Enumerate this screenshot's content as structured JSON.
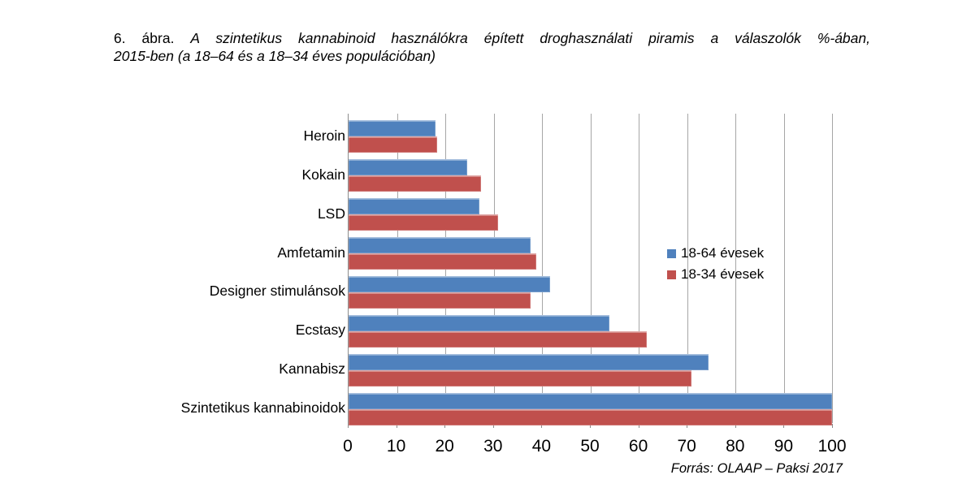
{
  "figure": {
    "title_prefix": "6. ábra.",
    "title_line1": "A szintetikus kannabinoid használókra épített droghasználati piramis a válaszolók %-ában,",
    "title_line2": "2015-ben (a 18–64 és a 18–34 éves populációban)",
    "source": "Forrás: OLAAP – Paksi 2017"
  },
  "chart_data": {
    "type": "bar",
    "orientation": "horizontal",
    "categories": [
      "Heroin",
      "Kokain",
      "LSD",
      "Amfetamin",
      "Designer stimulánsok",
      "Ecstasy",
      "Kannabisz",
      "Szintetikus kannabinoidok"
    ],
    "series": [
      {
        "name": "18-64 évesek",
        "color": "#4F81BD",
        "values": [
          18.0,
          24.5,
          27.0,
          37.7,
          41.7,
          54.0,
          74.4,
          100.0
        ]
      },
      {
        "name": "18-34 évesek",
        "color": "#C0504D",
        "values": [
          18.4,
          27.4,
          31.0,
          38.8,
          37.7,
          61.6,
          71.0,
          100.0
        ]
      }
    ],
    "xlabel": "",
    "ylabel": "",
    "xlim": [
      0,
      100
    ],
    "x_ticks": [
      0,
      10,
      20,
      30,
      40,
      50,
      60,
      70,
      80,
      90,
      100
    ],
    "grid": "vertical",
    "legend_position": "inside-right"
  },
  "colors": {
    "grid": "#A6A6A6",
    "axis": "#8C8C8C",
    "text": "#000000",
    "background": "#FFFFFF"
  }
}
